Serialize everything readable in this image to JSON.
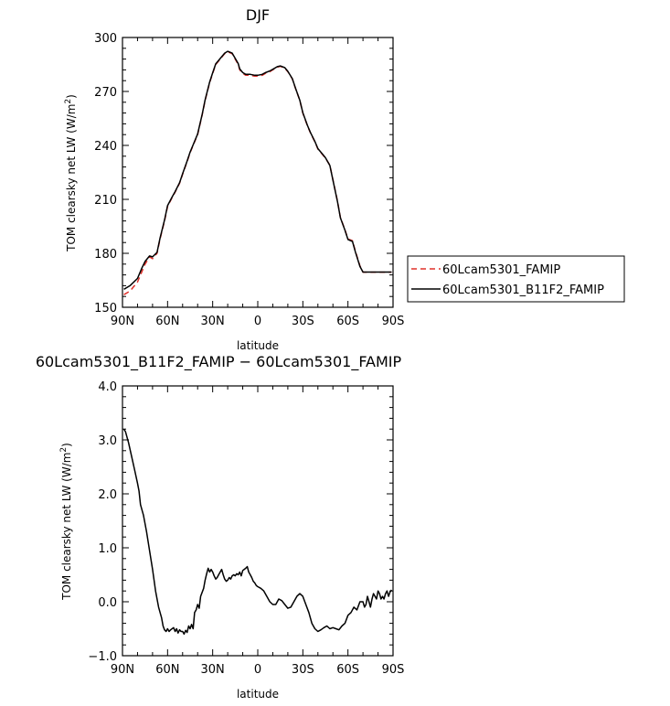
{
  "chart_data": [
    {
      "type": "line",
      "title": "DJF",
      "xlabel": "latitude",
      "ylabel_main": "TOM clearsky net LW (W/m",
      "ylabel_sup": "2",
      "ylabel_end": ")",
      "xticks": [
        {
          "v": 90,
          "label": "90N"
        },
        {
          "v": 60,
          "label": "60N"
        },
        {
          "v": 30,
          "label": "30N"
        },
        {
          "v": 0,
          "label": "0"
        },
        {
          "v": -30,
          "label": "30S"
        },
        {
          "v": -60,
          "label": "60S"
        },
        {
          "v": -90,
          "label": "90S"
        }
      ],
      "yticks": [
        {
          "v": 150,
          "label": "150"
        },
        {
          "v": 180,
          "label": "180"
        },
        {
          "v": 210,
          "label": "210"
        },
        {
          "v": 240,
          "label": "240"
        },
        {
          "v": 270,
          "label": "270"
        },
        {
          "v": 300,
          "label": "300"
        }
      ],
      "xlim": [
        90,
        -90
      ],
      "ylim": [
        150,
        300
      ],
      "legend_position": "right",
      "series": [
        {
          "name": "60Lcam5301_FAMIP",
          "color": "#e0302a",
          "dash": "dashed",
          "x": [
            89,
            85,
            80,
            77,
            75,
            72,
            70,
            67,
            65,
            62,
            60,
            57,
            55,
            52,
            50,
            47,
            45,
            42,
            40,
            37,
            35,
            32,
            30,
            28,
            25,
            22,
            20,
            17,
            15,
            13,
            12,
            10,
            8,
            5,
            2,
            0,
            -3,
            -5,
            -8,
            -10,
            -13,
            -15,
            -18,
            -20,
            -23,
            -25,
            -28,
            -30,
            -33,
            -35,
            -38,
            -40,
            -43,
            -45,
            -48,
            -50,
            -53,
            -55,
            -58,
            -60,
            -63,
            -65,
            -68,
            -70,
            -73,
            -75,
            -78,
            -80,
            -83,
            -85,
            -88,
            -89
          ],
          "y": [
            157,
            159,
            164,
            170,
            174,
            178,
            177,
            180,
            188,
            198,
            206,
            211,
            214,
            219,
            224,
            231,
            236,
            242,
            246,
            257,
            265,
            275,
            280,
            285,
            288,
            291,
            292,
            291,
            288,
            285,
            282,
            280,
            279,
            279,
            278.5,
            278.5,
            279,
            280,
            281,
            282,
            283.5,
            284,
            283,
            281,
            277,
            272,
            265,
            258,
            251,
            247,
            242,
            238,
            235,
            233,
            229,
            221,
            209,
            200,
            193,
            188,
            187,
            181,
            173,
            169.5,
            169.5,
            169.5,
            169.5,
            169.5,
            169.5,
            169.5,
            169.5,
            169.5
          ]
        },
        {
          "name": "60Lcam5301_B11F2_FAMIP",
          "color": "#000000",
          "dash": "solid",
          "x": [
            89,
            85,
            80,
            77,
            75,
            72,
            70,
            67,
            65,
            62,
            60,
            57,
            55,
            52,
            50,
            47,
            45,
            42,
            40,
            37,
            35,
            32,
            30,
            28,
            25,
            22,
            20,
            17,
            15,
            13,
            12,
            10,
            8,
            5,
            2,
            0,
            -3,
            -5,
            -8,
            -10,
            -13,
            -15,
            -18,
            -20,
            -23,
            -25,
            -28,
            -30,
            -33,
            -35,
            -38,
            -40,
            -43,
            -45,
            -48,
            -50,
            -53,
            -55,
            -58,
            -60,
            -63,
            -65,
            -68,
            -70,
            -73,
            -75,
            -78,
            -80,
            -83,
            -85,
            -88,
            -89
          ],
          "y": [
            160,
            162,
            166,
            172,
            175.5,
            178.5,
            178,
            180.5,
            188.5,
            198.5,
            206.5,
            211.3,
            214.3,
            219.3,
            224.3,
            231.3,
            236.3,
            242.3,
            246.3,
            257.3,
            265.3,
            275.3,
            280.4,
            285.3,
            288.3,
            291.3,
            292.3,
            291.3,
            288.4,
            285.5,
            282.5,
            280.5,
            279.5,
            279.5,
            279,
            279,
            279.5,
            280.4,
            281.4,
            282.3,
            283.8,
            284.2,
            283.2,
            281.2,
            277.1,
            272.1,
            265.1,
            258.2,
            251.2,
            247.2,
            242.2,
            238.2,
            235.2,
            233.2,
            228.8,
            220.8,
            208.8,
            199.8,
            192.8,
            187.7,
            186.6,
            180.6,
            172.7,
            169.6,
            169.6,
            169.6,
            169.6,
            169.6,
            169.6,
            169.6,
            169.6,
            169.6
          ]
        }
      ]
    },
    {
      "type": "line",
      "title": "60Lcam5301_B11F2_FAMIP − 60Lcam5301_FAMIP",
      "xlabel": "latitude",
      "ylabel_main": "TOM clearsky net LW (W/m",
      "ylabel_sup": "2",
      "ylabel_end": ")",
      "xticks": [
        {
          "v": 90,
          "label": "90N"
        },
        {
          "v": 60,
          "label": "60N"
        },
        {
          "v": 30,
          "label": "30N"
        },
        {
          "v": 0,
          "label": "0"
        },
        {
          "v": -30,
          "label": "30S"
        },
        {
          "v": -60,
          "label": "60S"
        },
        {
          "v": -90,
          "label": "90S"
        }
      ],
      "yticks": [
        {
          "v": -1,
          "label": "−1.0"
        },
        {
          "v": 0,
          "label": "0.0"
        },
        {
          "v": 1,
          "label": "1.0"
        },
        {
          "v": 2,
          "label": "2.0"
        },
        {
          "v": 3,
          "label": "3.0"
        },
        {
          "v": 4,
          "label": "4.0"
        }
      ],
      "xlim": [
        90,
        -90
      ],
      "ylim": [
        -1,
        4
      ],
      "series": [
        {
          "name": "",
          "color": "#000000",
          "dash": "solid",
          "x": [
            89,
            88,
            86,
            84,
            82,
            80,
            79,
            78,
            76,
            74,
            72,
            70,
            68,
            66,
            64,
            63,
            62,
            61,
            60,
            59,
            58,
            57,
            56,
            55,
            54,
            53,
            52,
            51,
            50,
            49,
            48,
            47,
            46,
            45,
            44,
            43,
            42,
            41,
            40,
            39,
            38,
            36,
            35,
            34,
            33,
            32,
            31,
            30,
            29,
            28,
            27,
            26,
            25,
            24,
            23,
            22,
            21,
            20,
            19,
            18,
            17,
            16,
            15,
            14,
            13,
            12,
            11,
            10,
            9,
            8,
            7,
            6,
            5,
            4,
            3,
            2,
            1,
            0,
            -2,
            -4,
            -6,
            -8,
            -10,
            -12,
            -14,
            -16,
            -18,
            -20,
            -22,
            -24,
            -26,
            -28,
            -30,
            -32,
            -34,
            -36,
            -38,
            -40,
            -42,
            -44,
            -46,
            -48,
            -50,
            -52,
            -54,
            -56,
            -58,
            -60,
            -62,
            -64,
            -66,
            -68,
            -70,
            -71,
            -72,
            -73,
            -74,
            -75,
            -76,
            -77,
            -78,
            -79,
            -80,
            -81,
            -82,
            -83,
            -84,
            -85,
            -86,
            -87,
            -88,
            -89
          ],
          "y": [
            3.2,
            3.15,
            2.95,
            2.7,
            2.45,
            2.2,
            2.05,
            1.8,
            1.6,
            1.3,
            0.95,
            0.6,
            0.2,
            -0.1,
            -0.3,
            -0.45,
            -0.52,
            -0.55,
            -0.5,
            -0.55,
            -0.52,
            -0.5,
            -0.48,
            -0.55,
            -0.5,
            -0.58,
            -0.52,
            -0.55,
            -0.55,
            -0.6,
            -0.53,
            -0.57,
            -0.45,
            -0.5,
            -0.42,
            -0.5,
            -0.2,
            -0.15,
            -0.05,
            -0.12,
            0.1,
            0.25,
            0.4,
            0.52,
            0.62,
            0.55,
            0.6,
            0.55,
            0.48,
            0.42,
            0.45,
            0.5,
            0.55,
            0.6,
            0.5,
            0.42,
            0.38,
            0.4,
            0.45,
            0.42,
            0.48,
            0.5,
            0.48,
            0.52,
            0.5,
            0.55,
            0.48,
            0.58,
            0.6,
            0.62,
            0.65,
            0.55,
            0.5,
            0.45,
            0.38,
            0.35,
            0.3,
            0.28,
            0.25,
            0.2,
            0.1,
            0.0,
            -0.05,
            -0.05,
            0.05,
            0.02,
            -0.05,
            -0.12,
            -0.1,
            0.0,
            0.1,
            0.15,
            0.1,
            -0.05,
            -0.2,
            -0.4,
            -0.5,
            -0.55,
            -0.52,
            -0.48,
            -0.45,
            -0.5,
            -0.48,
            -0.5,
            -0.52,
            -0.45,
            -0.4,
            -0.25,
            -0.2,
            -0.1,
            -0.15,
            0.0,
            0.0,
            -0.1,
            -0.05,
            0.1,
            0.0,
            -0.1,
            0.05,
            0.15,
            0.1,
            0.05,
            0.2,
            0.15,
            0.05,
            0.1,
            0.05,
            0.15,
            0.2,
            0.1,
            0.18,
            0.22
          ]
        }
      ]
    }
  ]
}
